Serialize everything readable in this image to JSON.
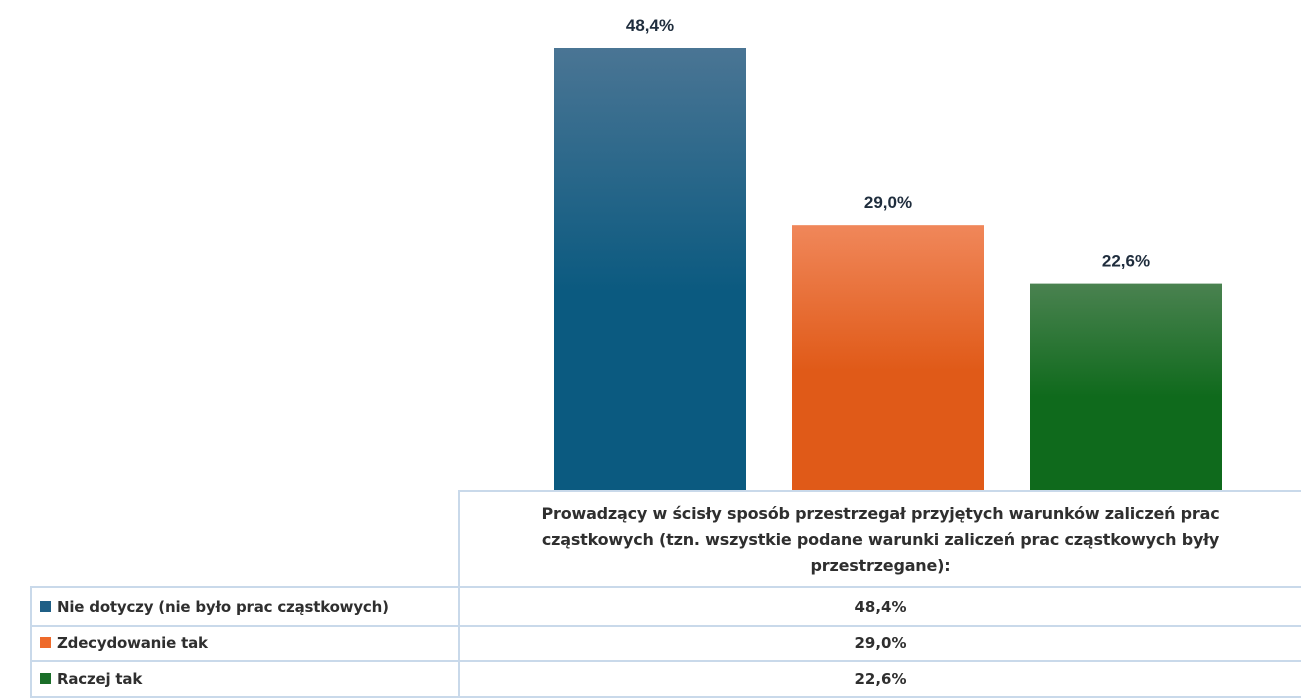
{
  "chart_data": {
    "type": "bar",
    "categories": [
      "Prowadzący w ścisły sposób przestrzegał przyjętych warunków zaliczeń prac cząstkowych (tzn. wszystkie podane warunki zaliczeń prac cząstkowych były przestrzegane):"
    ],
    "series": [
      {
        "name": "Nie dotyczy (nie było prac cząstkowych)",
        "values": [
          48.4
        ],
        "label": "48,4%",
        "color_top": "#4a7594",
        "color_bottom": "#0b5a80",
        "swatch": "#1f5f86"
      },
      {
        "name": "Zdecydowanie tak",
        "values": [
          29.0
        ],
        "label": "29,0%",
        "color_top": "#f0875a",
        "color_bottom": "#e05a18",
        "swatch": "#ee6a2a"
      },
      {
        "name": "Raczej tak",
        "values": [
          22.6
        ],
        "label": "22,6%",
        "color_top": "#4a8250",
        "color_bottom": "#0f6a1c",
        "swatch": "#1a6e28"
      }
    ],
    "ylim": [
      0,
      48.4
    ],
    "grid": false,
    "legend": "table-bottom-left",
    "title": "",
    "xlabel": "",
    "ylabel": ""
  }
}
